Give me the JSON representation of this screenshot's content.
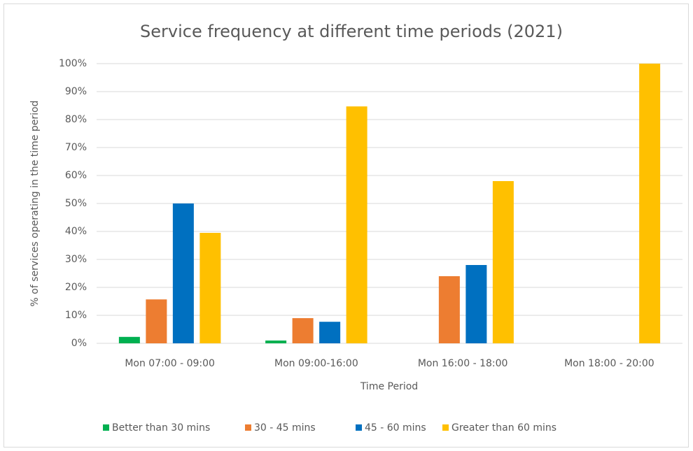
{
  "chart_data": {
    "type": "bar",
    "title": "Service frequency at different time periods (2021)",
    "x_label": "Time Period",
    "y_label": "% of services operating in the time period",
    "categories": [
      "Mon 07:00 - 09:00",
      "Mon 09:00-16:00",
      "Mon 16:00 - 18:00",
      "Mon 18:00 - 20:00"
    ],
    "series": [
      {
        "name": "Better than 30 mins",
        "color": "#00b050",
        "values": [
          2.3,
          1,
          0,
          0
        ]
      },
      {
        "name": "30 - 45 mins",
        "color": "#ed7d31",
        "values": [
          15.7,
          9,
          24,
          0
        ]
      },
      {
        "name": "45 - 60 mins",
        "color": "#0070c0",
        "values": [
          50,
          7.7,
          28,
          0
        ]
      },
      {
        "name": "Greater than 60 mins",
        "color": "#ffc000",
        "values": [
          39.5,
          84.7,
          58,
          100
        ]
      }
    ],
    "ylim": [
      0,
      100
    ],
    "yticks": [
      {
        "value": 0,
        "label": "0%"
      },
      {
        "value": 10,
        "label": "10%"
      },
      {
        "value": 20,
        "label": "20%"
      },
      {
        "value": 30,
        "label": "30%"
      },
      {
        "value": 40,
        "label": "40%"
      },
      {
        "value": 50,
        "label": "50%"
      },
      {
        "value": 60,
        "label": "60%"
      },
      {
        "value": 70,
        "label": "70%"
      },
      {
        "value": 80,
        "label": "80%"
      },
      {
        "value": 90,
        "label": "90%"
      },
      {
        "value": 100,
        "label": "100%"
      }
    ],
    "grid": true,
    "legend": "bottom"
  }
}
